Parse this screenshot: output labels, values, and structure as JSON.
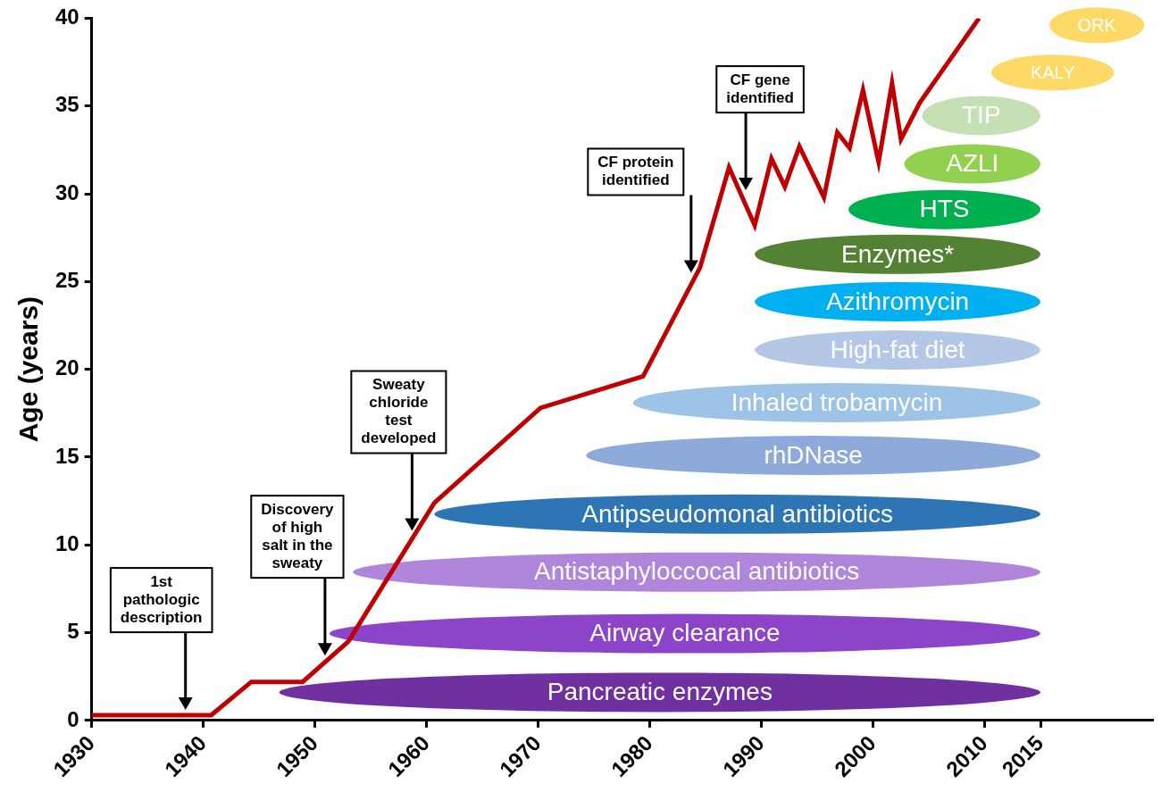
{
  "chart_data": {
    "type": "line",
    "y_label": "Age (years)",
    "x": [
      1930,
      1940.7,
      1944.3,
      1948.9,
      1953,
      1960.7,
      1970.2,
      1979.4,
      1984.5,
      1987.1,
      1989.4,
      1990.9,
      1992.1,
      1993.4,
      1995.6,
      1996.8,
      1997.9,
      1999.1,
      2000.5,
      2001.7,
      2002.5,
      2004.2,
      2009.5
    ],
    "values": [
      0.3,
      0.3,
      2.2,
      2.2,
      4.5,
      12.4,
      17.8,
      19.6,
      25.8,
      31.5,
      28.2,
      32.0,
      30.4,
      32.7,
      29.8,
      33.5,
      32.6,
      35.9,
      31.8,
      36.3,
      33.1,
      35.2,
      40
    ],
    "color": "#c00000",
    "xlim": [
      1930,
      2025
    ],
    "xticks": [
      1930,
      1940,
      1950,
      1960,
      1970,
      1980,
      1990,
      2000,
      2010,
      2015
    ],
    "ylim": [
      0,
      40
    ],
    "yticks": [
      0,
      5,
      10,
      15,
      20,
      25,
      30,
      35,
      40
    ],
    "grid": false,
    "annotations": [
      {
        "text": [
          "1st",
          "pathologic",
          "description"
        ],
        "x": 1938.4,
        "y": 0.6
      },
      {
        "text": [
          "Discovery",
          "of high",
          "salt in the",
          "sweaty"
        ],
        "x": 1950.9,
        "y": 3.7
      },
      {
        "text": [
          "Sweaty",
          "chloride",
          "test",
          "developed"
        ],
        "x": 1958.7,
        "y": 10.8
      },
      {
        "text": [
          "CF protein",
          "identified"
        ],
        "x": 1983.7,
        "y": 25.5
      },
      {
        "text": [
          "CF gene",
          "identified"
        ],
        "x": 1988.6,
        "y": 30.2
      }
    ],
    "treatments": [
      {
        "label": "Pancreatic enzymes",
        "start": 1946.8,
        "end": 2015,
        "y": 1.6,
        "color": "#7030a0"
      },
      {
        "label": "Airway clearance",
        "start": 1951.3,
        "end": 2015,
        "y": 4.95,
        "color": "#8c45c9"
      },
      {
        "label": "Antistaphyloccocal antibiotics",
        "start": 1953.4,
        "end": 2015,
        "y": 8.45,
        "color": "#b085dc"
      },
      {
        "label": "Antipseudomonal antibiotics",
        "start": 1960.7,
        "end": 2015,
        "y": 11.75,
        "color": "#2e75b6"
      },
      {
        "label": "rhDNase",
        "start": 1974.3,
        "end": 2015,
        "y": 15.1,
        "color": "#8eaadb"
      },
      {
        "label": "Inhaled trobamycin",
        "start": 1978.5,
        "end": 2015,
        "y": 18.1,
        "color": "#9dc3e6"
      },
      {
        "label": "High-fat diet",
        "start": 1989.4,
        "end": 2015,
        "y": 21.1,
        "color": "#b4c7e7"
      },
      {
        "label": "Azithromycin",
        "start": 1989.4,
        "end": 2015,
        "y": 23.85,
        "color": "#00b0f0"
      },
      {
        "label": "Enzymes*",
        "start": 1989.4,
        "end": 2015,
        "y": 26.55,
        "color": "#548235"
      },
      {
        "label": "HTS",
        "start": 1997.8,
        "end": 2015,
        "y": 29.1,
        "color": "#00b050"
      },
      {
        "label": "AZLI",
        "start": 2002.8,
        "end": 2015,
        "y": 31.7,
        "color": "#92d050"
      },
      {
        "label": "TIP",
        "start": 2004.4,
        "end": 2015,
        "y": 34.45,
        "color": "#c5e0b4"
      },
      {
        "label": "KALY",
        "start": 2010.6,
        "end": 2021.6,
        "y": 36.9,
        "color": "#ffd966"
      },
      {
        "label": "ORK",
        "start": 2015.8,
        "end": 2024.3,
        "y": 39.6,
        "color": "#ffd966"
      }
    ]
  }
}
